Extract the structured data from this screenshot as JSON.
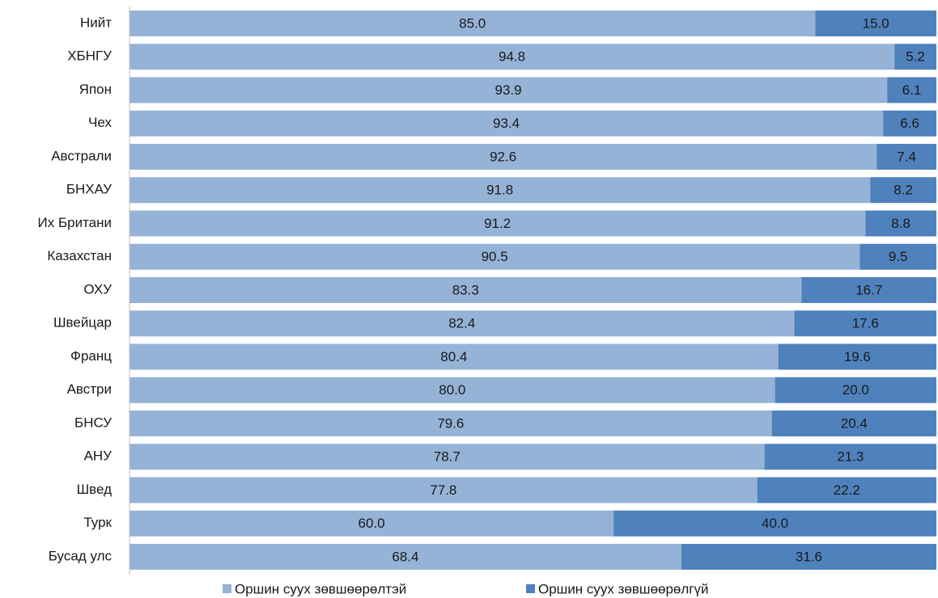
{
  "chart_data": {
    "type": "stacked_barh",
    "categories": [
      "Нийт",
      "ХБНГУ",
      "Япон",
      "Чех",
      "Австрали",
      "БНХАУ",
      "Их Британи",
      "Казахстан",
      "ОХУ",
      "Швейцар",
      "Франц",
      "Австри",
      "БНСУ",
      "АНУ",
      "Швед",
      "Турк",
      "Бусад улс"
    ],
    "series": [
      {
        "name": "Оршин суух зөвшөөрөлтэй",
        "color": "#95b3d7",
        "values": [
          85,
          94.8,
          93.9,
          93.4,
          92.6,
          91.8,
          91.2,
          90.5,
          83.3,
          82.4,
          80.4,
          80,
          79.6,
          78.7,
          77.8,
          60,
          68.4
        ],
        "value_labels": [
          "85.0",
          "94.8",
          "93.9",
          "93.4",
          "92.6",
          "91.8",
          "91.2",
          "90.5",
          "83.3",
          "82.4",
          "80.4",
          "80.0",
          "79.6",
          "78.7",
          "77.8",
          "60.0",
          "68.4"
        ]
      },
      {
        "name": "Оршин суух зөвшөөрөлгүй",
        "color": "#4f81bd",
        "values": [
          15,
          5.2,
          6.1,
          6.6,
          7.4,
          8.2,
          8.8,
          9.5,
          16.7,
          17.6,
          19.6,
          20,
          20.4,
          21.3,
          22.2,
          40,
          31.6
        ],
        "value_labels": [
          "15.0",
          "5.2",
          "6.1",
          "6.6",
          "7.4",
          "8.2",
          "8.8",
          "9.5",
          "16.7",
          "17.6",
          "19.6",
          "20.0",
          "20.4",
          "21.3",
          "22.2",
          "40.0",
          "31.6"
        ]
      }
    ],
    "xlim": [
      0,
      100
    ],
    "legend": "bottom"
  }
}
